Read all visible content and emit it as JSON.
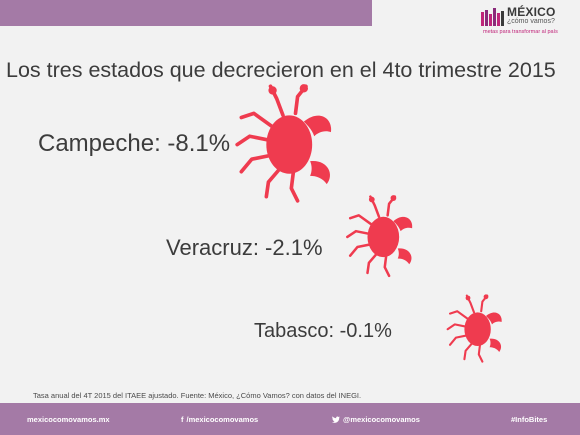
{
  "header": {
    "logo_title": "MÉXICO",
    "logo_subtitle": "¿cómo vamos?",
    "logo_tagline": "metas para transformar al país"
  },
  "title": "Los tres estados que decrecieron en el 4to trimestre 2015",
  "states": [
    {
      "label": "Campeche: -8.1%"
    },
    {
      "label": "Veracruz: -2.1%"
    },
    {
      "label": "Tabasco: -0.1%"
    }
  ],
  "source": "Tasa anual del 4T 2015 del ITAEE ajustado. Fuente: México, ¿Cómo Vamos? con datos del INEGI.",
  "footer": {
    "website": "mexicocomovamos.mx",
    "facebook": "/mexicocomovamos",
    "twitter": "@mexicocomovamos",
    "hashtag": "#InfoBites"
  },
  "colors": {
    "accent": "#a47aa6",
    "crab": "#ef3b4f",
    "logo_magenta": "#c0257a"
  },
  "icons": [
    "crab-icon",
    "facebook-icon",
    "twitter-icon",
    "logo-bars-icon"
  ]
}
